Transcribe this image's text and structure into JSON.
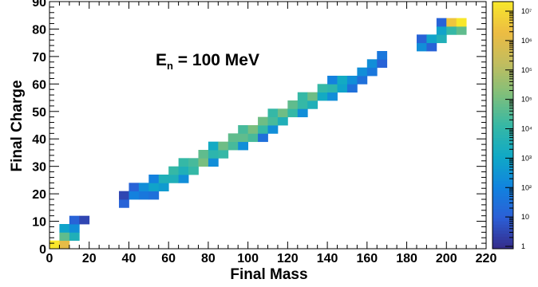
{
  "chart_data": {
    "type": "heatmap",
    "title": "",
    "annotation": {
      "base": "E",
      "sub": "n",
      "rest": " = 100 MeV"
    },
    "xlabel": "Final Mass",
    "ylabel": "Final Charge",
    "xlim": [
      0,
      220
    ],
    "ylim": [
      0,
      90
    ],
    "xticks": [
      0,
      20,
      40,
      60,
      80,
      100,
      120,
      140,
      160,
      180,
      200,
      220
    ],
    "yticks": [
      0,
      10,
      20,
      30,
      40,
      50,
      60,
      70,
      80,
      90
    ],
    "bin_width_x": 5,
    "bin_width_y": 3,
    "zscale": "log",
    "zlim": [
      1,
      10000000
    ],
    "colorbar_labels": [
      "1",
      "10",
      "10²",
      "10³",
      "10⁴",
      "10⁵",
      "10⁵",
      "10⁶",
      "10⁷"
    ],
    "colorbar_values": [
      1,
      10,
      100,
      1000,
      10000,
      100000,
      100000,
      1000000,
      10000000
    ],
    "colormap": [
      "#352a87",
      "#2c5ed6",
      "#1183df",
      "#10a9c6",
      "#36b8a5",
      "#7fbf7b",
      "#c1bd5f",
      "#ecbc43",
      "#f8e72b"
    ],
    "cells": [
      [
        0,
        0,
        10000000
      ],
      [
        5,
        0,
        1000000
      ],
      [
        5,
        3,
        10000
      ],
      [
        5,
        6,
        300
      ],
      [
        10,
        3,
        1000
      ],
      [
        10,
        6,
        100
      ],
      [
        10,
        9,
        10
      ],
      [
        15,
        9,
        3
      ],
      [
        35,
        15,
        10
      ],
      [
        35,
        18,
        3
      ],
      [
        40,
        18,
        50
      ],
      [
        40,
        21,
        10
      ],
      [
        45,
        18,
        30
      ],
      [
        45,
        21,
        100
      ],
      [
        50,
        18,
        20
      ],
      [
        50,
        21,
        300
      ],
      [
        50,
        24,
        50
      ],
      [
        55,
        21,
        200
      ],
      [
        55,
        24,
        1000
      ],
      [
        60,
        24,
        1000
      ],
      [
        60,
        27,
        3000
      ],
      [
        65,
        24,
        100
      ],
      [
        65,
        27,
        1000
      ],
      [
        65,
        30,
        3000
      ],
      [
        70,
        27,
        3000
      ],
      [
        70,
        30,
        5000
      ],
      [
        75,
        30,
        20000
      ],
      [
        75,
        33,
        10000
      ],
      [
        80,
        30,
        100
      ],
      [
        80,
        33,
        2000
      ],
      [
        80,
        36,
        500
      ],
      [
        85,
        33,
        3000
      ],
      [
        85,
        36,
        15000
      ],
      [
        90,
        36,
        5000
      ],
      [
        90,
        39,
        10000
      ],
      [
        95,
        36,
        100
      ],
      [
        95,
        39,
        10000
      ],
      [
        95,
        42,
        5000
      ],
      [
        100,
        39,
        5000
      ],
      [
        100,
        42,
        20000
      ],
      [
        105,
        39,
        20
      ],
      [
        105,
        42,
        3000
      ],
      [
        105,
        45,
        15000
      ],
      [
        110,
        42,
        100
      ],
      [
        110,
        45,
        5000
      ],
      [
        110,
        48,
        3000
      ],
      [
        115,
        45,
        1000
      ],
      [
        115,
        48,
        15000
      ],
      [
        120,
        48,
        3000
      ],
      [
        120,
        51,
        10000
      ],
      [
        125,
        48,
        100
      ],
      [
        125,
        51,
        3000
      ],
      [
        125,
        54,
        3000
      ],
      [
        130,
        51,
        1000
      ],
      [
        130,
        54,
        15000
      ],
      [
        135,
        54,
        500
      ],
      [
        135,
        57,
        3000
      ],
      [
        140,
        54,
        100
      ],
      [
        140,
        57,
        2000
      ],
      [
        140,
        60,
        50
      ],
      [
        145,
        57,
        300
      ],
      [
        145,
        60,
        500
      ],
      [
        150,
        57,
        20
      ],
      [
        150,
        60,
        100
      ],
      [
        155,
        60,
        20
      ],
      [
        155,
        63,
        100
      ],
      [
        160,
        63,
        30
      ],
      [
        160,
        66,
        100
      ],
      [
        165,
        66,
        10
      ],
      [
        165,
        69,
        30
      ],
      [
        185,
        72,
        100
      ],
      [
        185,
        75,
        10
      ],
      [
        190,
        72,
        10
      ],
      [
        190,
        75,
        300
      ],
      [
        195,
        75,
        1000
      ],
      [
        195,
        78,
        300
      ],
      [
        195,
        81,
        10
      ],
      [
        200,
        78,
        3000
      ],
      [
        200,
        81,
        2000000
      ],
      [
        205,
        78,
        10000
      ],
      [
        205,
        81,
        10000000
      ]
    ]
  }
}
